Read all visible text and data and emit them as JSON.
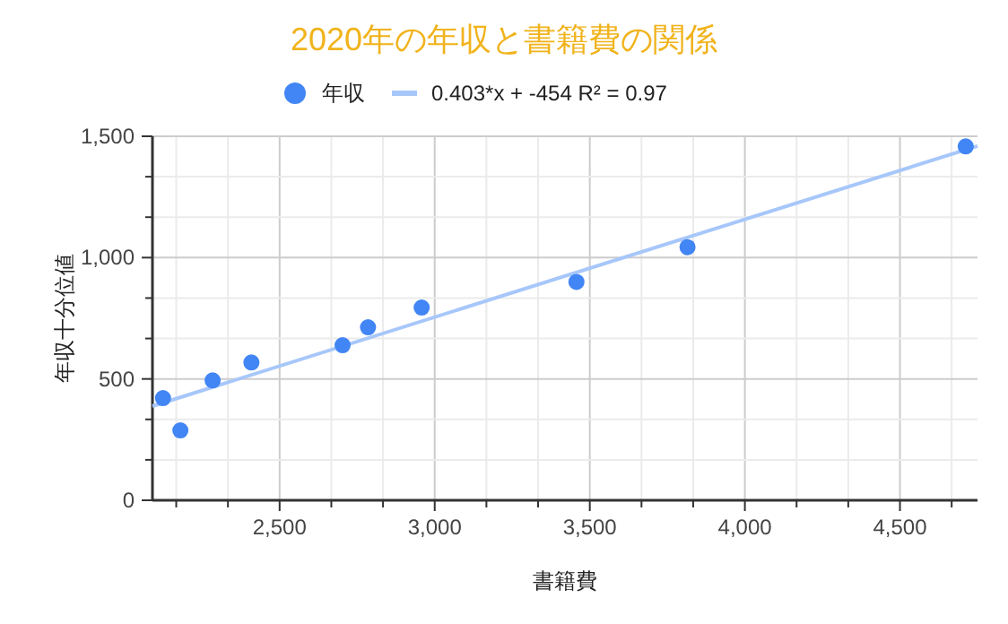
{
  "chart_data": {
    "type": "scatter",
    "title": "2020年の年収と書籍費の関係",
    "xlabel": "書籍費",
    "ylabel": "年収十分位値",
    "xlim": [
      2090,
      4750
    ],
    "ylim": [
      0,
      1500
    ],
    "xticks": [
      {
        "value": 2166.67,
        "label": null
      },
      {
        "value": 2333.33,
        "label": null
      },
      {
        "value": 2500,
        "label": "2,500"
      },
      {
        "value": 2666.67,
        "label": null
      },
      {
        "value": 2833.33,
        "label": null
      },
      {
        "value": 3000,
        "label": "3,000"
      },
      {
        "value": 3166.67,
        "label": null
      },
      {
        "value": 3333.33,
        "label": null
      },
      {
        "value": 3500,
        "label": "3,500"
      },
      {
        "value": 3666.67,
        "label": null
      },
      {
        "value": 3833.33,
        "label": null
      },
      {
        "value": 4000,
        "label": "4,000"
      },
      {
        "value": 4166.67,
        "label": null
      },
      {
        "value": 4333.33,
        "label": null
      },
      {
        "value": 4500,
        "label": "4,500"
      },
      {
        "value": 4666.67,
        "label": null
      }
    ],
    "yticks": [
      0,
      {
        "value": 166.67,
        "label": null
      },
      {
        "value": 333.33,
        "label": null
      },
      500,
      {
        "value": 666.67,
        "label": null
      },
      {
        "value": 833.33,
        "label": null
      },
      {
        "value": 1000,
        "label": "1,000"
      },
      {
        "value": 1166.67,
        "label": null
      },
      {
        "value": 1333.33,
        "label": null
      },
      {
        "value": 1500,
        "label": "1,500"
      }
    ],
    "grid": true,
    "legend": "top",
    "series": [
      {
        "name": "年収",
        "marker": "circle",
        "color": "#4285f4",
        "x": [
          2124,
          2180,
          2284,
          2409,
          2703,
          2785,
          2958,
          3457,
          3815,
          4712
        ],
        "values": [
          421,
          288,
          494,
          568,
          639,
          713,
          794,
          900,
          1043,
          1458
        ]
      },
      {
        "name": "0.403*x + -454 R² = 0.97",
        "type": "line",
        "marker": "none",
        "color": "#a7c7fa",
        "x": [
          2090,
          4750
        ],
        "values": [
          388,
          1460
        ]
      }
    ]
  }
}
